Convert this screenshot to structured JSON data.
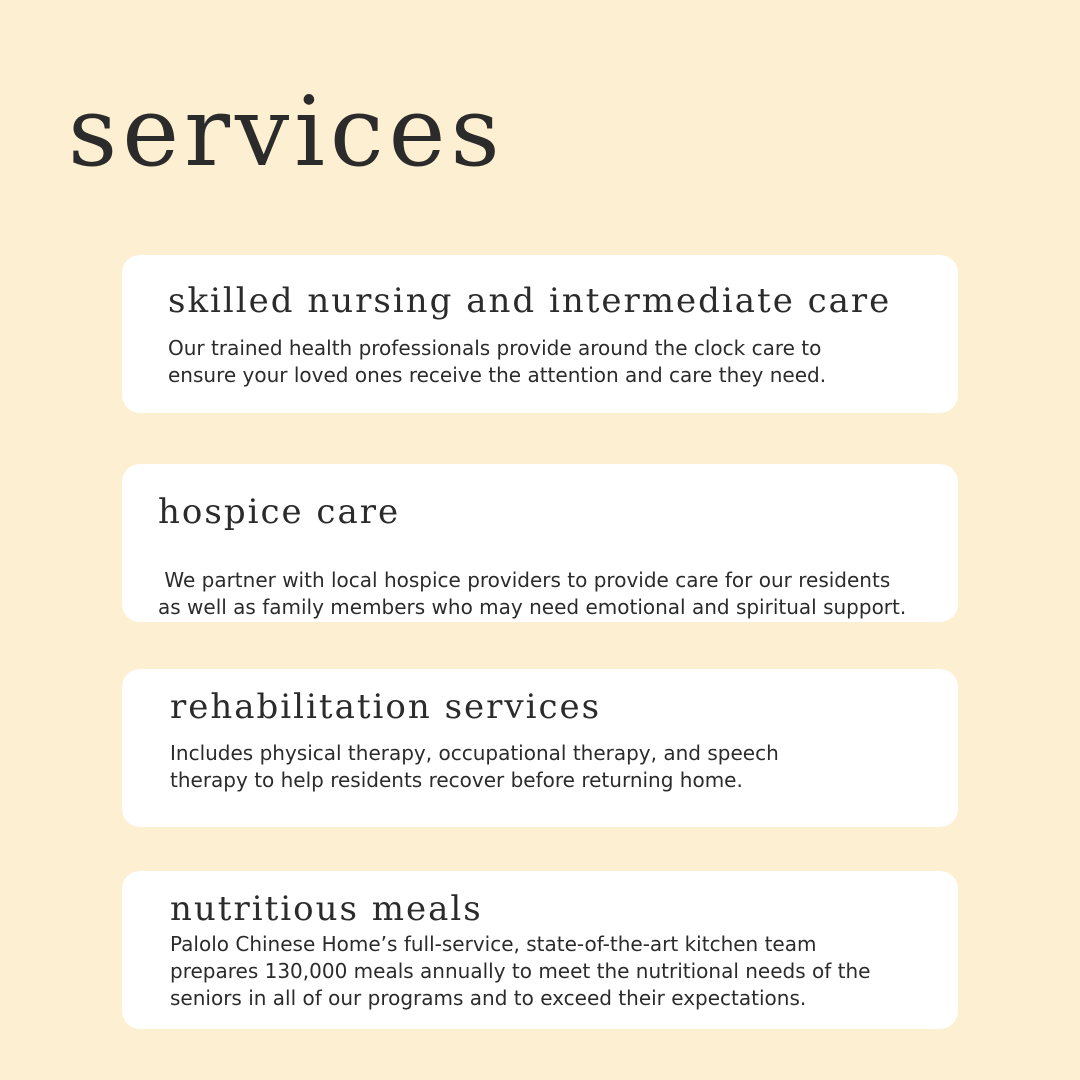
{
  "page": {
    "title": "services"
  },
  "services": [
    {
      "title": "skilled nursing and intermediate care",
      "description_lines": [
        "Our trained health professionals provide around the clock care to",
        "ensure your loved ones receive the attention and care they need."
      ]
    },
    {
      "title": "hospice care",
      "description_lines": [
        " We partner with local hospice providers to provide care for our residents",
        "as well as family members who may need emotional and spiritual support."
      ]
    },
    {
      "title": "rehabilitation services",
      "description_lines": [
        "Includes physical therapy, occupational therapy, and speech",
        "therapy to help residents recover before returning home."
      ]
    },
    {
      "title": "nutritious meals",
      "description_lines": [
        "Palolo Chinese Home’s full-service, state-of-the-art kitchen team",
        "prepares 130,000 meals annually to meet the nutritional needs of the",
        "seniors in all of our programs and to exceed their expectations."
      ]
    }
  ]
}
